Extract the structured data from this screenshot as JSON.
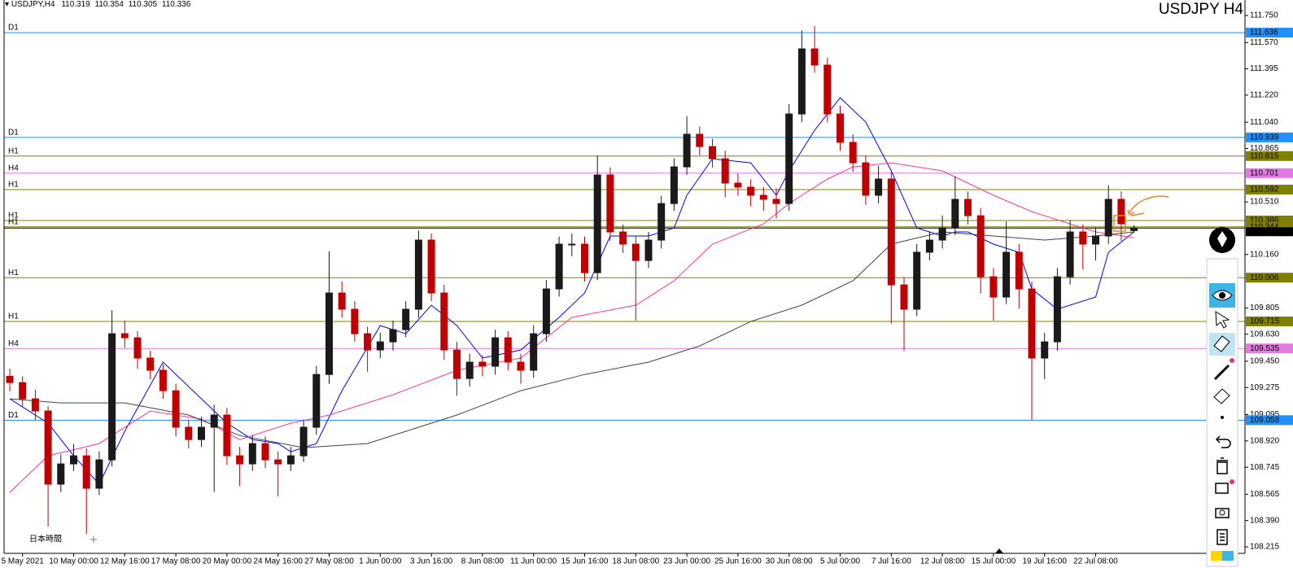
{
  "chart_data": {
    "type": "candlestick",
    "title": "USDJPY H4",
    "symbol": "USDJPY,H4",
    "timezone_label": "日本時間",
    "up_color": "#1a1a1a",
    "down_color": "#c00000",
    "categories": [
      null,
      "5 May 2021",
      null,
      null,
      null,
      "10 May 00:00",
      null,
      null,
      null,
      "12 May 16:00",
      null,
      null,
      null,
      "17 May 08:00",
      null,
      null,
      null,
      "20 May 00:00",
      null,
      null,
      null,
      "24 May 16:00",
      null,
      null,
      null,
      "27 May 08:00",
      null,
      null,
      null,
      "1 Jun 00:00",
      null,
      null,
      null,
      "3 Jun 16:00",
      null,
      null,
      null,
      "8 Jun 08:00",
      null,
      null,
      null,
      "11 Jun 00:00",
      null,
      null,
      null,
      "15 Jun 16:00",
      null,
      null,
      null,
      "18 Jun 08:00",
      null,
      null,
      null,
      "23 Jun 00:00",
      null,
      null,
      null,
      "25 Jun 16:00",
      null,
      null,
      null,
      "30 Jun 08:00",
      null,
      null,
      null,
      "5 Jul 00:00",
      null,
      null,
      null,
      "7 Jul 16:00",
      null,
      null,
      null,
      "12 Jul 08:00",
      null,
      null,
      null,
      "15 Jul 00:00",
      null,
      null,
      null,
      "19 Jul 16:00",
      null,
      null,
      null,
      "22 Jul 08:00",
      null,
      null,
      null
    ],
    "ohlc": [
      [
        109.35,
        109.4,
        109.25,
        109.308
      ],
      [
        109.308,
        109.35,
        109.15,
        109.2
      ],
      [
        109.2,
        109.26,
        109.06,
        109.119
      ],
      [
        109.119,
        109.15,
        108.35,
        108.632
      ],
      [
        108.632,
        108.83,
        108.58,
        108.767
      ],
      [
        108.767,
        108.9,
        108.72,
        108.821
      ],
      [
        108.821,
        108.87,
        108.3,
        108.605
      ],
      [
        108.605,
        108.85,
        108.56,
        108.794
      ],
      [
        108.794,
        109.79,
        108.75,
        109.633
      ],
      [
        109.633,
        109.72,
        109.54,
        109.606
      ],
      [
        109.606,
        109.65,
        109.4,
        109.471
      ],
      [
        109.471,
        109.52,
        109.33,
        109.39
      ],
      [
        109.39,
        109.43,
        109.2,
        109.254
      ],
      [
        109.254,
        109.3,
        108.95,
        109.011
      ],
      [
        109.011,
        109.06,
        108.87,
        108.929
      ],
      [
        108.929,
        109.08,
        108.88,
        109.011
      ],
      [
        109.011,
        109.16,
        108.58,
        109.092
      ],
      [
        109.092,
        109.14,
        108.76,
        108.821
      ],
      [
        108.821,
        108.88,
        108.62,
        108.767
      ],
      [
        108.767,
        108.96,
        108.72,
        108.902
      ],
      [
        108.902,
        108.95,
        108.74,
        108.794
      ],
      [
        108.794,
        108.85,
        108.55,
        108.767
      ],
      [
        108.767,
        108.88,
        108.72,
        108.821
      ],
      [
        108.821,
        109.06,
        108.78,
        109.011
      ],
      [
        109.011,
        109.42,
        108.96,
        109.362
      ],
      [
        109.362,
        110.18,
        109.3,
        109.904
      ],
      [
        109.904,
        109.98,
        109.74,
        109.796
      ],
      [
        109.796,
        109.85,
        109.58,
        109.633
      ],
      [
        109.633,
        109.68,
        109.38,
        109.525
      ],
      [
        109.525,
        109.64,
        109.47,
        109.579
      ],
      [
        109.579,
        109.72,
        109.52,
        109.66
      ],
      [
        109.66,
        109.85,
        109.61,
        109.796
      ],
      [
        109.796,
        110.32,
        109.74,
        110.256
      ],
      [
        110.256,
        110.3,
        109.85,
        109.904
      ],
      [
        109.904,
        109.96,
        109.46,
        109.525
      ],
      [
        109.525,
        109.58,
        109.22,
        109.335
      ],
      [
        109.335,
        109.5,
        109.28,
        109.444
      ],
      [
        109.444,
        109.49,
        109.35,
        109.417
      ],
      [
        109.417,
        109.66,
        109.36,
        109.606
      ],
      [
        109.606,
        109.65,
        109.39,
        109.444
      ],
      [
        109.444,
        109.5,
        109.3,
        109.39
      ],
      [
        109.39,
        109.69,
        109.34,
        109.633
      ],
      [
        109.633,
        109.99,
        109.58,
        109.931
      ],
      [
        109.931,
        110.28,
        109.88,
        110.229
      ],
      [
        110.229,
        110.3,
        110.15,
        110.229
      ],
      [
        110.229,
        110.28,
        109.98,
        110.039
      ],
      [
        110.039,
        110.82,
        109.99,
        110.689
      ],
      [
        110.689,
        110.74,
        110.25,
        110.31
      ],
      [
        110.31,
        110.36,
        110.17,
        110.229
      ],
      [
        110.229,
        110.28,
        109.72,
        110.12
      ],
      [
        110.12,
        110.31,
        110.07,
        110.256
      ],
      [
        110.256,
        110.55,
        110.2,
        110.499
      ],
      [
        110.499,
        110.8,
        110.45,
        110.743
      ],
      [
        110.743,
        111.08,
        110.69,
        110.96
      ],
      [
        110.96,
        111.01,
        110.82,
        110.878
      ],
      [
        110.878,
        110.93,
        110.74,
        110.797
      ],
      [
        110.797,
        110.85,
        110.54,
        110.635
      ],
      [
        110.635,
        110.7,
        110.55,
        110.608
      ],
      [
        110.608,
        110.66,
        110.48,
        110.554
      ],
      [
        110.554,
        110.61,
        110.45,
        110.527
      ],
      [
        110.527,
        110.6,
        110.4,
        110.499
      ],
      [
        110.499,
        111.16,
        110.45,
        111.095
      ],
      [
        111.095,
        111.65,
        111.04,
        111.528
      ],
      [
        111.528,
        111.68,
        111.37,
        111.42
      ],
      [
        111.42,
        111.47,
        111.04,
        111.095
      ],
      [
        111.095,
        111.15,
        110.85,
        110.906
      ],
      [
        110.906,
        110.96,
        110.71,
        110.77
      ],
      [
        110.77,
        110.82,
        110.49,
        110.554
      ],
      [
        110.554,
        110.75,
        110.5,
        110.662
      ],
      [
        110.662,
        110.71,
        109.7,
        109.958
      ],
      [
        109.958,
        110.01,
        109.52,
        109.796
      ],
      [
        109.796,
        110.23,
        109.75,
        110.175
      ],
      [
        110.175,
        110.31,
        110.12,
        110.256
      ],
      [
        110.256,
        110.42,
        110.2,
        110.337
      ],
      [
        110.337,
        110.68,
        110.29,
        110.527
      ],
      [
        110.527,
        110.58,
        110.36,
        110.418
      ],
      [
        110.418,
        110.47,
        109.9,
        110.012
      ],
      [
        110.012,
        110.07,
        109.72,
        109.877
      ],
      [
        109.877,
        110.38,
        109.83,
        110.175
      ],
      [
        110.175,
        110.23,
        109.8,
        109.931
      ],
      [
        109.931,
        109.98,
        109.06,
        109.471
      ],
      [
        109.471,
        109.64,
        109.33,
        109.579
      ],
      [
        109.579,
        110.07,
        109.52,
        110.012
      ],
      [
        110.012,
        110.39,
        109.96,
        110.31
      ],
      [
        110.31,
        110.36,
        110.06,
        110.229
      ],
      [
        110.229,
        110.34,
        110.12,
        110.283
      ],
      [
        110.283,
        110.62,
        110.23,
        110.527
      ],
      [
        110.527,
        110.58,
        110.25,
        110.364
      ],
      [
        110.319,
        110.354,
        110.305,
        110.336
      ]
    ],
    "lines": [
      {
        "color": "#0000ff",
        "x": [
          0,
          3,
          5,
          7,
          9,
          12,
          15,
          17,
          19,
          21,
          22,
          24,
          26,
          29,
          31,
          33,
          35,
          37,
          40,
          43,
          45,
          47,
          50,
          52,
          53,
          55,
          58,
          60,
          61,
          63,
          65,
          67,
          69,
          71,
          73,
          74,
          75,
          77,
          79,
          80,
          82,
          85,
          86,
          88
        ],
        "values": [
          109.2,
          109.038,
          108.821,
          108.632,
          108.984,
          109.444,
          109.2,
          109.038,
          108.929,
          108.902,
          108.848,
          108.902,
          109.254,
          109.687,
          109.633,
          109.823,
          109.687,
          109.471,
          109.525,
          109.742,
          109.904,
          110.283,
          110.283,
          110.337,
          110.554,
          110.797,
          110.77,
          110.554,
          110.716,
          110.987,
          111.203,
          111.041,
          110.716,
          110.337,
          110.283,
          110.31,
          110.31,
          110.229,
          110.175,
          109.931,
          109.796,
          109.877,
          110.175,
          110.31
        ]
      },
      {
        "color": "#ff3399",
        "x": [
          0,
          3,
          7,
          11,
          15,
          18,
          22,
          25,
          30,
          35,
          40,
          44,
          49,
          52,
          55,
          59,
          61,
          64,
          66,
          69,
          73,
          77,
          80,
          83,
          85,
          88
        ],
        "values": [
          108.578,
          108.821,
          108.902,
          109.119,
          109.065,
          108.929,
          109.038,
          109.092,
          109.227,
          109.39,
          109.471,
          109.742,
          109.823,
          109.985,
          110.229,
          110.364,
          110.499,
          110.662,
          110.743,
          110.77,
          110.716,
          110.554,
          110.445,
          110.364,
          110.31,
          110.272
        ]
      },
      {
        "color": "#3a4a3a",
        "x": [
          0,
          4,
          9,
          14,
          18,
          23,
          28,
          31,
          35,
          40,
          45,
          50,
          54,
          58,
          62,
          66,
          69,
          73,
          77,
          81,
          85,
          88
        ],
        "values": [
          109.2,
          109.173,
          109.173,
          109.092,
          108.956,
          108.875,
          108.902,
          108.984,
          109.092,
          109.254,
          109.362,
          109.444,
          109.552,
          109.714,
          109.823,
          109.985,
          110.229,
          110.31,
          110.283,
          110.256,
          110.283,
          110.31
        ]
      }
    ],
    "levels": [
      {
        "tag": "D1",
        "value": 111.636,
        "color": "#1e90ff"
      },
      {
        "tag": "D1",
        "value": 110.939,
        "color": "#1e90ff"
      },
      {
        "tag": "H1",
        "value": 110.815,
        "color": "#808000"
      },
      {
        "tag": "H4",
        "value": 110.701,
        "color": "#e27ae2"
      },
      {
        "tag": "H1",
        "value": 110.592,
        "color": "#808000"
      },
      {
        "tag": "H1",
        "value": 110.386,
        "color": "#808000"
      },
      {
        "tag": "H1",
        "value": 110.344,
        "color": "#808000"
      },
      {
        "tag": "H1",
        "value": 110.006,
        "color": "#808000"
      },
      {
        "tag": "H1",
        "value": 109.715,
        "color": "#808000"
      },
      {
        "tag": "H4",
        "value": 109.535,
        "color": "#e27ae2"
      },
      {
        "tag": "D1",
        "value": 109.058,
        "color": "#1e90ff"
      }
    ],
    "ylim": [
      108.172,
      111.853
    ],
    "yticks": [
      {
        "value": 111.75,
        "label": "111.750"
      },
      {
        "value": 111.57,
        "label": "111.570"
      },
      {
        "value": 111.395,
        "label": "111.395"
      },
      {
        "value": 111.22,
        "label": "111.220"
      },
      {
        "value": 111.04,
        "label": "111.040"
      },
      {
        "value": 110.865,
        "label": "110.865"
      },
      {
        "value": 110.51,
        "label": "110.510"
      },
      {
        "value": 110.16,
        "label": "110.160"
      },
      {
        "value": 109.805,
        "label": "109.805"
      },
      {
        "value": 109.63,
        "label": "109.630"
      },
      {
        "value": 109.45,
        "label": "109.450"
      },
      {
        "value": 109.275,
        "label": "109.275"
      },
      {
        "value": 109.095,
        "label": "109.095"
      },
      {
        "value": 108.92,
        "label": "108.920"
      },
      {
        "value": 108.745,
        "label": "108.745"
      },
      {
        "value": 108.565,
        "label": "108.565"
      },
      {
        "value": 108.39,
        "label": "108.390"
      },
      {
        "value": 108.215,
        "label": "108.215"
      }
    ]
  }
}
